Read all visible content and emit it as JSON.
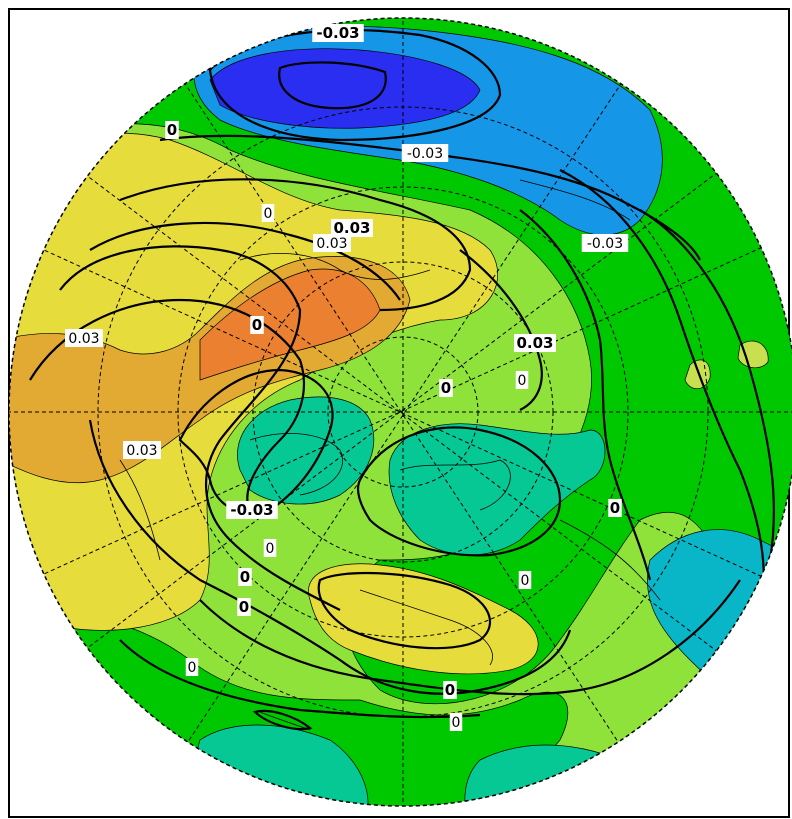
{
  "map": {
    "projection": "north-polar-stereographic",
    "colors": {
      "ocean_blue_deep": "#2a2ef0",
      "blue": "#1596e6",
      "teal_blue": "#08b6c8",
      "teal": "#06c894",
      "green_teal": "#00c85a",
      "green": "#00c800",
      "light_green": "#8ee23a",
      "yellow_green": "#c8e050",
      "yellow": "#e6dc3c",
      "ochre": "#e2aa32",
      "orange": "#ea8030",
      "contour": "#000000",
      "graticule": "#000000"
    },
    "contour_labels": [
      {
        "text": "-0.03",
        "style": "bold"
      },
      {
        "text": "-0.03",
        "style": "thin"
      },
      {
        "text": "-0.03",
        "style": "thin"
      },
      {
        "text": "0",
        "style": "bold"
      },
      {
        "text": "0",
        "style": "thin"
      },
      {
        "text": "0.03",
        "style": "bold"
      },
      {
        "text": "0.03",
        "style": "thin"
      },
      {
        "text": "0",
        "style": "bold"
      },
      {
        "text": "0.03",
        "style": "thin"
      },
      {
        "text": "0.03",
        "style": "bold"
      },
      {
        "text": "0",
        "style": "thin"
      },
      {
        "text": "0",
        "style": "bold"
      },
      {
        "text": "0.03",
        "style": "thin"
      },
      {
        "text": "-0.03",
        "style": "bold"
      },
      {
        "text": "0",
        "style": "bold"
      },
      {
        "text": "0",
        "style": "thin"
      },
      {
        "text": "0",
        "style": "bold"
      },
      {
        "text": "0",
        "style": "bold"
      },
      {
        "text": "0",
        "style": "thin"
      },
      {
        "text": "0",
        "style": "thin"
      },
      {
        "text": "0",
        "style": "bold"
      },
      {
        "text": "0",
        "style": "thin"
      }
    ]
  }
}
